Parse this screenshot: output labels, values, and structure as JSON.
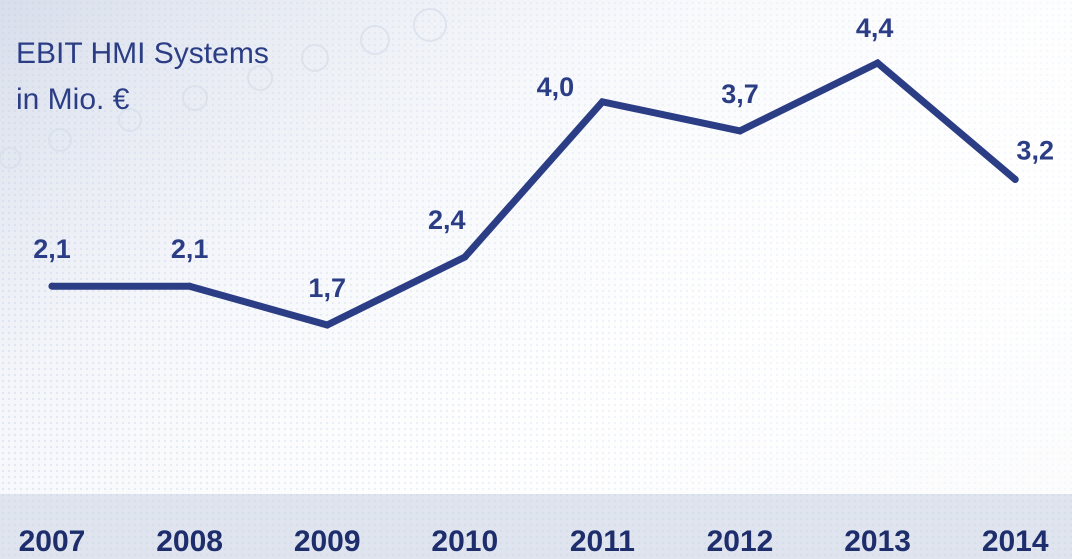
{
  "chart_data": {
    "type": "line",
    "title": "EBIT HMI Systems",
    "subtitle": "in Mio. €",
    "xlabel": "",
    "ylabel": "",
    "categories": [
      "2007",
      "2008",
      "2009",
      "2010",
      "2011",
      "2012",
      "2013",
      "2014"
    ],
    "series": [
      {
        "values": [
          2.1,
          2.1,
          1.7,
          2.4,
          4.0,
          3.7,
          4.4,
          3.2
        ],
        "labels": [
          "2,1",
          "2,1",
          "1,7",
          "2,4",
          "4,0",
          "3,7",
          "4,4",
          "3,2"
        ]
      }
    ],
    "grid": false,
    "legend": "none",
    "colors": {
      "line": "#2b3d84",
      "labels": "#2b3d84",
      "axis_band": "#dfe4ee",
      "background_pattern": "#c9d3e6"
    }
  }
}
